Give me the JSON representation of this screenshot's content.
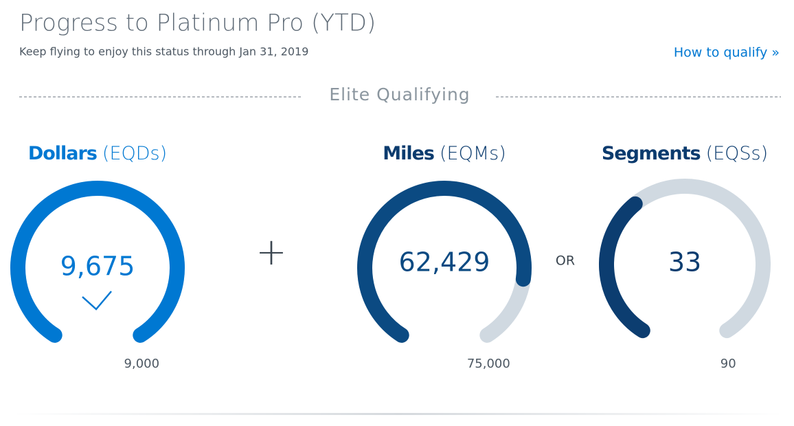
{
  "header": {
    "title": "Progress to Platinum Pro (YTD)",
    "subtitle": "Keep flying to enjoy this status through Jan 31, 2019",
    "link": "How to qualify »"
  },
  "section_title": "Elite Qualifying",
  "operators": {
    "plus": "+",
    "or": "OR"
  },
  "gauges": [
    {
      "name": "Dollars",
      "unit": "(EQDs)",
      "value": 9675,
      "value_label": "9,675",
      "target": 9000,
      "target_label": "9,000",
      "color": "#0078d2",
      "title_color": "#0078d2"
    },
    {
      "name": "Miles",
      "unit": "(EQMs)",
      "value": 62429,
      "value_label": "62,429",
      "target": 75000,
      "target_label": "75,000",
      "color": "#0b4a82",
      "title_color": "#0b3b6e"
    },
    {
      "name": "Segments",
      "unit": "(EQSs)",
      "value": 33,
      "value_label": "33",
      "target": 90,
      "target_label": "90",
      "color": "#0c3d70",
      "title_color": "#0b3b6e"
    }
  ],
  "track_color": "#d0d9e1"
}
